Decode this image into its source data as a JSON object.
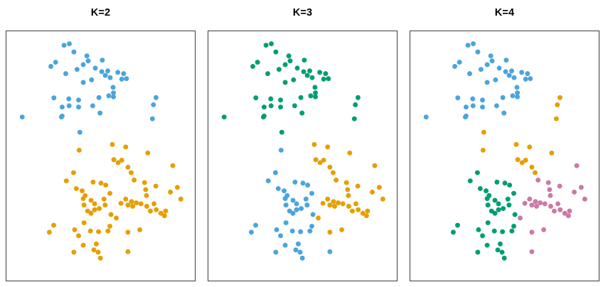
{
  "figure": {
    "background": "#ffffff",
    "panel_border_color": "#3c3c3c",
    "title_color": "#000000"
  },
  "chart_data": {
    "type": "scatter",
    "title": "",
    "xlabel": "",
    "ylabel": "",
    "grid": false,
    "axes_ticks_visible": false,
    "legend": "none",
    "x_range": [
      0,
      1
    ],
    "y_range": [
      0,
      1
    ],
    "point_radius": 3.5,
    "palette": {
      "b": "#4AA5DC",
      "o": "#E69F00",
      "g": "#009E73",
      "p": "#CC79A7"
    },
    "panels": [
      {
        "title": "K=2",
        "k": 2,
        "color_index": 2
      },
      {
        "title": "K=3",
        "k": 3,
        "color_index": 3
      },
      {
        "title": "K=4",
        "k": 4,
        "color_index": 4
      }
    ],
    "points": [
      [
        0.306,
        0.056,
        "b",
        "g",
        "b"
      ],
      [
        0.334,
        0.05,
        "b",
        "g",
        "b"
      ],
      [
        0.358,
        0.083,
        "b",
        "g",
        "b"
      ],
      [
        0.427,
        0.099,
        "b",
        "g",
        "b"
      ],
      [
        0.261,
        0.124,
        "b",
        "g",
        "b"
      ],
      [
        0.236,
        0.141,
        "b",
        "g",
        "b"
      ],
      [
        0.509,
        0.116,
        "b",
        "g",
        "b"
      ],
      [
        0.408,
        0.134,
        "b",
        "g",
        "b"
      ],
      [
        0.434,
        0.119,
        "b",
        "g",
        "b"
      ],
      [
        0.506,
        0.162,
        "b",
        "g",
        "b"
      ],
      [
        0.538,
        0.159,
        "b",
        "g",
        "b"
      ],
      [
        0.525,
        0.177,
        "b",
        "g",
        "b"
      ],
      [
        0.551,
        0.186,
        "b",
        "g",
        "b"
      ],
      [
        0.591,
        0.165,
        "b",
        "g",
        "b"
      ],
      [
        0.622,
        0.17,
        "b",
        "g",
        "b"
      ],
      [
        0.612,
        0.192,
        "b",
        "g",
        "b"
      ],
      [
        0.637,
        0.19,
        "b",
        "g",
        "b"
      ],
      [
        0.566,
        0.225,
        "b",
        "g",
        "b"
      ],
      [
        0.543,
        0.259,
        "b",
        "g",
        "b"
      ],
      [
        0.568,
        0.247,
        "b",
        "g",
        "b"
      ],
      [
        0.568,
        0.263,
        "b",
        "g",
        "b"
      ],
      [
        0.491,
        0.266,
        "b",
        "g",
        "b"
      ],
      [
        0.497,
        0.328,
        "b",
        "g",
        "b"
      ],
      [
        0.252,
        0.267,
        "b",
        "g",
        "b"
      ],
      [
        0.331,
        0.271,
        "b",
        "g",
        "b"
      ],
      [
        0.383,
        0.276,
        "b",
        "g",
        "b"
      ],
      [
        0.296,
        0.304,
        "b",
        "g",
        "b"
      ],
      [
        0.333,
        0.299,
        "b",
        "g",
        "b"
      ],
      [
        0.383,
        0.304,
        "b",
        "g",
        "b"
      ],
      [
        0.458,
        0.299,
        "b",
        "g",
        "b"
      ],
      [
        0.296,
        0.34,
        "b",
        "g",
        "b"
      ],
      [
        0.084,
        0.344,
        "b",
        "g",
        "b"
      ],
      [
        0.292,
        0.344,
        "b",
        "g",
        "b"
      ],
      [
        0.408,
        0.205,
        "b",
        "g",
        "b"
      ],
      [
        0.452,
        0.195,
        "b",
        "g",
        "b"
      ],
      [
        0.472,
        0.148,
        "b",
        "g",
        "b"
      ],
      [
        0.375,
        0.153,
        "b",
        "g",
        "b"
      ],
      [
        0.315,
        0.17,
        "b",
        "g",
        "b"
      ],
      [
        0.794,
        0.266,
        "b",
        "g",
        "o"
      ],
      [
        0.78,
        0.295,
        "b",
        "g",
        "o"
      ],
      [
        0.775,
        0.351,
        "b",
        "g",
        "o"
      ],
      [
        0.39,
        0.405,
        "b",
        "g",
        "o"
      ],
      [
        0.386,
        0.477,
        "o",
        "b",
        "o"
      ],
      [
        0.562,
        0.454,
        "o",
        "o",
        "o"
      ],
      [
        0.633,
        0.464,
        "o",
        "o",
        "o"
      ],
      [
        0.75,
        0.488,
        "o",
        "o",
        "o"
      ],
      [
        0.57,
        0.515,
        "o",
        "o",
        "o"
      ],
      [
        0.593,
        0.527,
        "o",
        "o",
        "o"
      ],
      [
        0.612,
        0.517,
        "o",
        "o",
        "o"
      ],
      [
        0.645,
        0.545,
        "o",
        "o",
        "o"
      ],
      [
        0.662,
        0.567,
        "o",
        "o",
        "o"
      ],
      [
        0.883,
        0.539,
        "o",
        "o",
        "p"
      ],
      [
        0.678,
        0.597,
        "o",
        "o",
        "p"
      ],
      [
        0.733,
        0.607,
        "o",
        "o",
        "p"
      ],
      [
        0.739,
        0.635,
        "o",
        "o",
        "p"
      ],
      [
        0.907,
        0.626,
        "o",
        "o",
        "p"
      ],
      [
        0.87,
        0.645,
        "o",
        "o",
        "p"
      ],
      [
        0.926,
        0.673,
        "o",
        "o",
        "p"
      ],
      [
        0.645,
        0.806,
        "o",
        "o",
        "p"
      ],
      [
        0.708,
        0.796,
        "o",
        "o",
        "p"
      ],
      [
        0.608,
        0.69,
        "o",
        "o",
        "p"
      ],
      [
        0.633,
        0.673,
        "o",
        "o",
        "p"
      ],
      [
        0.645,
        0.697,
        "o",
        "o",
        "p"
      ],
      [
        0.664,
        0.683,
        "o",
        "o",
        "p"
      ],
      [
        0.67,
        0.702,
        "o",
        "o",
        "p"
      ],
      [
        0.689,
        0.688,
        "o",
        "o",
        "p"
      ],
      [
        0.714,
        0.692,
        "o",
        "o",
        "p"
      ],
      [
        0.745,
        0.702,
        "o",
        "o",
        "p"
      ],
      [
        0.764,
        0.721,
        "o",
        "o",
        "p"
      ],
      [
        0.783,
        0.692,
        "o",
        "o",
        "p"
      ],
      [
        0.795,
        0.716,
        "o",
        "o",
        "p"
      ],
      [
        0.82,
        0.73,
        "o",
        "o",
        "p"
      ],
      [
        0.845,
        0.721,
        "o",
        "o",
        "p"
      ],
      [
        0.839,
        0.74,
        "o",
        "o",
        "p"
      ],
      [
        0.743,
        0.659,
        "o",
        "o",
        "p"
      ],
      [
        0.793,
        0.621,
        "o",
        "o",
        "p"
      ],
      [
        0.583,
        0.749,
        "o",
        "o",
        "p"
      ],
      [
        0.356,
        0.567,
        "o",
        "b",
        "g"
      ],
      [
        0.318,
        0.6,
        "o",
        "b",
        "g"
      ],
      [
        0.46,
        0.605,
        "o",
        "b",
        "g"
      ],
      [
        0.502,
        0.609,
        "o",
        "b",
        "g"
      ],
      [
        0.527,
        0.617,
        "o",
        "b",
        "g"
      ],
      [
        0.371,
        0.631,
        "o",
        "b",
        "g"
      ],
      [
        0.402,
        0.64,
        "o",
        "b",
        "g"
      ],
      [
        0.418,
        0.659,
        "o",
        "b",
        "g"
      ],
      [
        0.408,
        0.671,
        "o",
        "b",
        "g"
      ],
      [
        0.549,
        0.65,
        "o",
        "b",
        "g"
      ],
      [
        0.449,
        0.678,
        "o",
        "b",
        "g"
      ],
      [
        0.468,
        0.692,
        "o",
        "b",
        "g"
      ],
      [
        0.412,
        0.697,
        "o",
        "b",
        "g"
      ],
      [
        0.431,
        0.721,
        "o",
        "b",
        "g"
      ],
      [
        0.449,
        0.73,
        "o",
        "b",
        "g"
      ],
      [
        0.468,
        0.716,
        "o",
        "b",
        "g"
      ],
      [
        0.493,
        0.711,
        "o",
        "b",
        "g"
      ],
      [
        0.518,
        0.673,
        "o",
        "b",
        "g"
      ],
      [
        0.524,
        0.697,
        "o",
        "b",
        "g"
      ],
      [
        0.251,
        0.778,
        "o",
        "b",
        "g"
      ],
      [
        0.228,
        0.806,
        "o",
        "b",
        "g"
      ],
      [
        0.362,
        0.796,
        "o",
        "b",
        "g"
      ],
      [
        0.383,
        0.82,
        "o",
        "b",
        "g"
      ],
      [
        0.446,
        0.801,
        "o",
        "b",
        "g"
      ],
      [
        0.489,
        0.804,
        "o",
        "b",
        "g"
      ],
      [
        0.539,
        0.801,
        "o",
        "b",
        "g"
      ],
      [
        0.408,
        0.858,
        "o",
        "b",
        "g"
      ],
      [
        0.477,
        0.853,
        "o",
        "b",
        "g"
      ],
      [
        0.464,
        0.877,
        "o",
        "b",
        "g"
      ],
      [
        0.487,
        0.886,
        "o",
        "b",
        "g"
      ],
      [
        0.358,
        0.886,
        "o",
        "b",
        "g"
      ],
      [
        0.499,
        0.91,
        "o",
        "b",
        "g"
      ],
      [
        0.555,
        0.735,
        "o",
        "b",
        "g"
      ],
      [
        0.549,
        0.782,
        "o",
        "b",
        "g"
      ],
      [
        0.412,
        0.768,
        "o",
        "b",
        "g"
      ],
      [
        0.645,
        0.884,
        "o",
        "b",
        "p"
      ]
    ]
  }
}
